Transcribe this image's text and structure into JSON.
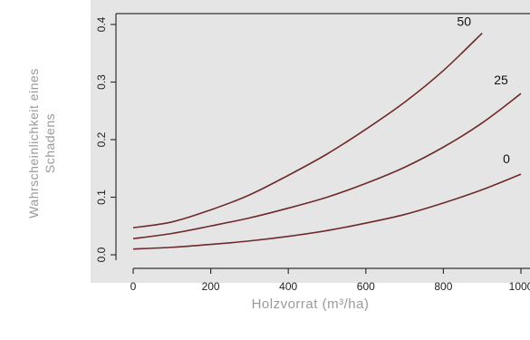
{
  "chart_data": {
    "type": "line",
    "xlabel": "Holzvorrat (m³/ha)",
    "ylabel_lines": [
      "Wahrscheinlichkeit eines",
      "Schadens"
    ],
    "xlim": [
      0,
      1000
    ],
    "ylim": [
      0,
      0.4
    ],
    "x_ticks": [
      0,
      200,
      400,
      600,
      800,
      1000
    ],
    "y_ticks": [
      0.0,
      0.1,
      0.2,
      0.3,
      0.4
    ],
    "x_tick_labels": [
      "0",
      "200",
      "400",
      "600",
      "800",
      "1000"
    ],
    "y_tick_labels": [
      "0.0",
      "0.1",
      "0.2",
      "0.3",
      "0.4"
    ],
    "grid": false,
    "series": [
      {
        "name": "50",
        "x": [
          0,
          100,
          200,
          300,
          400,
          500,
          600,
          700,
          800,
          900
        ],
        "y": [
          0.047,
          0.057,
          0.078,
          0.104,
          0.138,
          0.175,
          0.218,
          0.265,
          0.32,
          0.385
        ]
      },
      {
        "name": "25",
        "x": [
          0,
          100,
          200,
          300,
          400,
          500,
          600,
          700,
          800,
          900,
          1000
        ],
        "y": [
          0.028,
          0.037,
          0.05,
          0.064,
          0.081,
          0.1,
          0.124,
          0.152,
          0.187,
          0.229,
          0.28
        ]
      },
      {
        "name": "0",
        "x": [
          0,
          100,
          200,
          300,
          400,
          500,
          600,
          700,
          800,
          900,
          1000
        ],
        "y": [
          0.01,
          0.013,
          0.018,
          0.024,
          0.032,
          0.042,
          0.055,
          0.07,
          0.09,
          0.113,
          0.14
        ]
      }
    ],
    "colors": {
      "line": "#6e2a2a",
      "panel": "#e5e5e5",
      "axis": "#333333"
    }
  }
}
